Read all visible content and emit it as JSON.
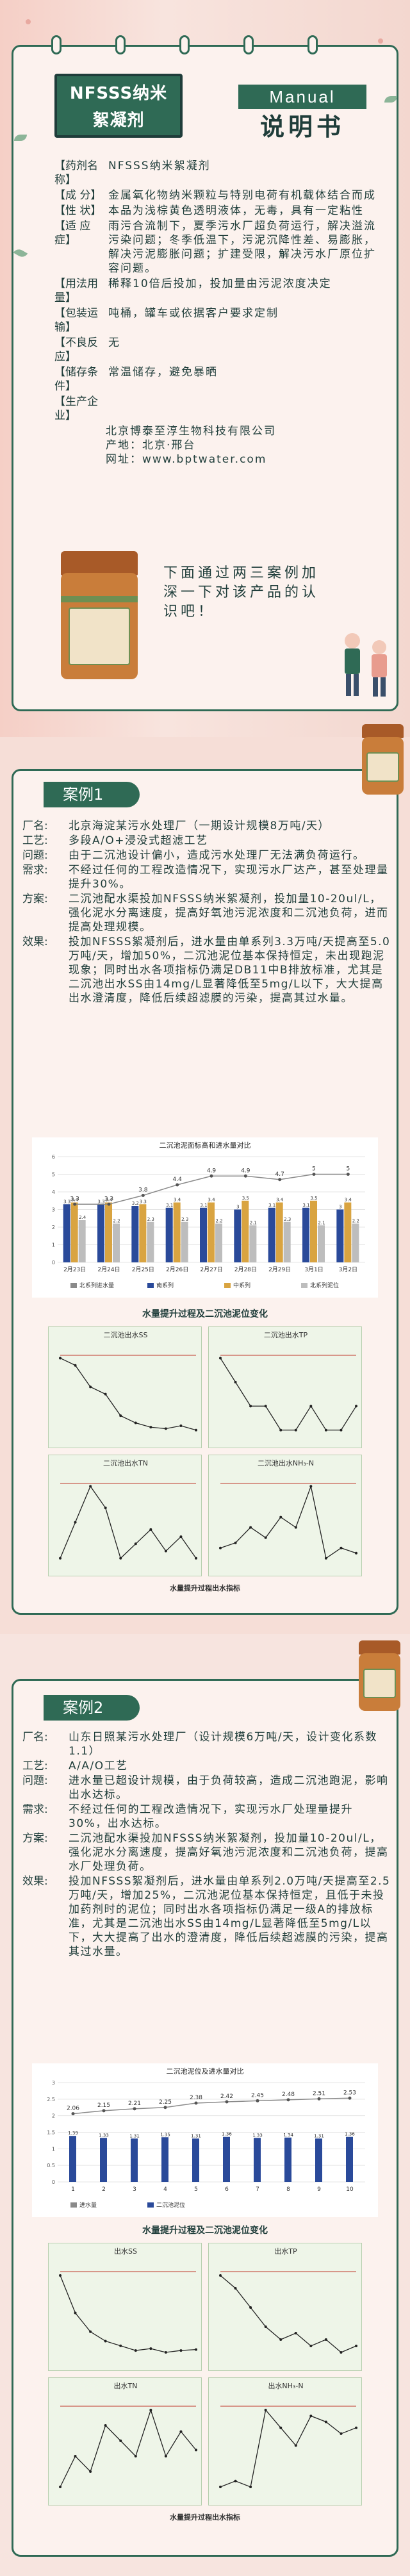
{
  "intro": {
    "product_title_line1": "NFSSS纳米",
    "product_title_line2": "絮凝剂",
    "manual_label": "Manual",
    "manual_cn": "说明书",
    "specs": [
      {
        "k": "【药剂名称】",
        "v": "NFSSS纳米絮凝剂"
      },
      {
        "k": "【成  分】",
        "v": "金属氧化物纳米颗粒与特别电荷有机载体结合而成"
      },
      {
        "k": "【性  状】",
        "v": "本品为浅棕黄色透明液体，无毒，具有一定粘性"
      },
      {
        "k": "【适 应 症】",
        "v": "雨污合流制下，夏季污水厂超负荷运行，解决溢流污染问题；冬季低温下，污泥沉降性差、易膨胀，解决污泥膨胀问题；扩建受限，解决污水厂原位扩容问题。"
      },
      {
        "k": "【用法用量】",
        "v": "稀释10倍后投加，投加量由污泥浓度决定"
      },
      {
        "k": "【包装运输】",
        "v": "吨桶，罐车或依据客户要求定制"
      },
      {
        "k": "【不良反应】",
        "v": "无"
      },
      {
        "k": "【储存条件】",
        "v": "常温储存，避免暴晒"
      },
      {
        "k": "【生产企业】",
        "v": ""
      }
    ],
    "company": "北京博泰至淳生物科技有限公司",
    "origin": "产地：北京·邢台",
    "website": "网址：www.bptwater.com",
    "cta": "下面通过两三案例加深一下对该产品的认识吧！"
  },
  "case1": {
    "tag": "案例1",
    "rows": [
      {
        "k": "厂名:",
        "v": "北京海淀某污水处理厂（一期设计规模8万吨/天）"
      },
      {
        "k": "工艺:",
        "v": "多段A/O+浸没式超滤工艺"
      },
      {
        "k": "问题:",
        "v": "由于二沉池设计偏小，造成污水处理厂无法满负荷运行。"
      },
      {
        "k": "需求:",
        "v": "不经过任何的工程改造情况下，实现污水厂达产，甚至处理量提升30%。"
      },
      {
        "k": "方案:",
        "v": "二沉池配水渠投加NFSSS纳米絮凝剂，投加量10-20ul/L，强化泥水分离速度，提高好氧池污泥浓度和二沉池负荷，进而提高处理规模。"
      },
      {
        "k": "效果:",
        "v": "投加NFSSS絮凝剂后，进水量由单系列3.3万吨/天提高至5.0万吨/天，增加50%，二沉池泥位基本保持恒定，未出现跑泥现象；同时出水各项指标仍满足DB11中B排放标准，尤其是二沉池出水SS由14mg/L显著降低至5mg/L以下，大大提高出水澄清度，降低后续超滤膜的污染，提高其过水量。"
      }
    ],
    "chart_title": "二沉池泥面标高和进水量对比",
    "chart2_title": "水量提升过程及二沉池泥位变化",
    "mini_caption": "水量提升过程出水指标",
    "mini_titles": [
      "二沉池出水SS",
      "二沉池出水TP",
      "二沉池出水TN",
      "二沉池出水NH₃-N"
    ]
  },
  "case2": {
    "tag": "案例2",
    "rows": [
      {
        "k": "厂名:",
        "v": "山东日照某污水处理厂（设计规模6万吨/天，设计变化系数1.1）"
      },
      {
        "k": "工艺:",
        "v": "A/A/O工艺"
      },
      {
        "k": "问题:",
        "v": "进水量已超设计规模，由于负荷较高，造成二沉池跑泥，影响出水达标。"
      },
      {
        "k": "需求:",
        "v": "不经过任何的工程改造情况下，实现污水厂处理量提升30%，出水达标。"
      },
      {
        "k": "方案:",
        "v": "二沉池配水渠投加NFSSS纳米絮凝剂，投加量10-20ul/L，强化泥水分离速度，提高好氧池污泥浓度和二沉池负荷，提高水厂处理负荷。"
      },
      {
        "k": "效果:",
        "v": "投加NFSSS絮凝剂后，进水量由单系列2.0万吨/天提高至2.5万吨/天，增加25%，二沉池泥位基本保持恒定，且低于未投加药剂时的泥位；同时出水各项指标仍满足一级A的排放标准，尤其是二沉池出水SS由14mg/L显著降低至5mg/L以下，大大提高了出水的澄清度，降低后续超滤膜的污染，提高其过水量。"
      }
    ],
    "chart_title": "二沉池泥位及进水量对比",
    "chart2_title": "水量提升过程及二沉池泥位变化",
    "mini_caption": "水量提升过程出水指标",
    "mini_titles": [
      "出水SS",
      "出水TP",
      "出水TN",
      "出水NH₃-N"
    ]
  },
  "chart_data": [
    {
      "type": "bar",
      "title": "二沉池泥面标高和进水量对比",
      "categories": [
        "2月23日",
        "2月24日",
        "2月25日",
        "2月26日",
        "2月27日",
        "2月28日",
        "2月29日",
        "3月1日",
        "3月2日"
      ],
      "series": [
        {
          "name": "北系列进水量(万吨)",
          "type": "line",
          "values": [
            3.3,
            3.3,
            3.8,
            4.4,
            4.9,
            4.9,
            4.7,
            5.0,
            5.0
          ]
        },
        {
          "name": "南系列",
          "values": [
            3.3,
            3.3,
            3.2,
            3.1,
            3.1,
            3.0,
            3.1,
            3.1,
            3.0
          ]
        },
        {
          "name": "中系列",
          "values": [
            3.4,
            3.4,
            3.3,
            3.4,
            3.4,
            3.5,
            3.4,
            3.5,
            3.4
          ]
        },
        {
          "name": "北系列",
          "values": [
            2.4,
            2.2,
            2.3,
            2.3,
            2.2,
            2.1,
            2.3,
            2.1,
            2.2
          ]
        }
      ],
      "legend": [
        "北系列进水量",
        "南系列",
        "中系列",
        "北系列泥位"
      ],
      "ylim": [
        0,
        6
      ],
      "legend_position": "bottom"
    },
    {
      "type": "bar",
      "title": "二沉池泥位及进水量对比",
      "categories": [
        "1",
        "2",
        "3",
        "4",
        "5",
        "6",
        "7",
        "8",
        "9",
        "10"
      ],
      "series": [
        {
          "name": "进水量",
          "type": "line",
          "values": [
            2.06,
            2.15,
            2.21,
            2.25,
            2.38,
            2.42,
            2.45,
            2.48,
            2.51,
            2.53
          ]
        },
        {
          "name": "二沉池泥位",
          "values": [
            1.39,
            1.33,
            1.31,
            1.35,
            1.31,
            1.36,
            1.33,
            1.34,
            1.31,
            1.36
          ]
        }
      ],
      "ylim": [
        0,
        3
      ],
      "legend_position": "bottom"
    }
  ]
}
